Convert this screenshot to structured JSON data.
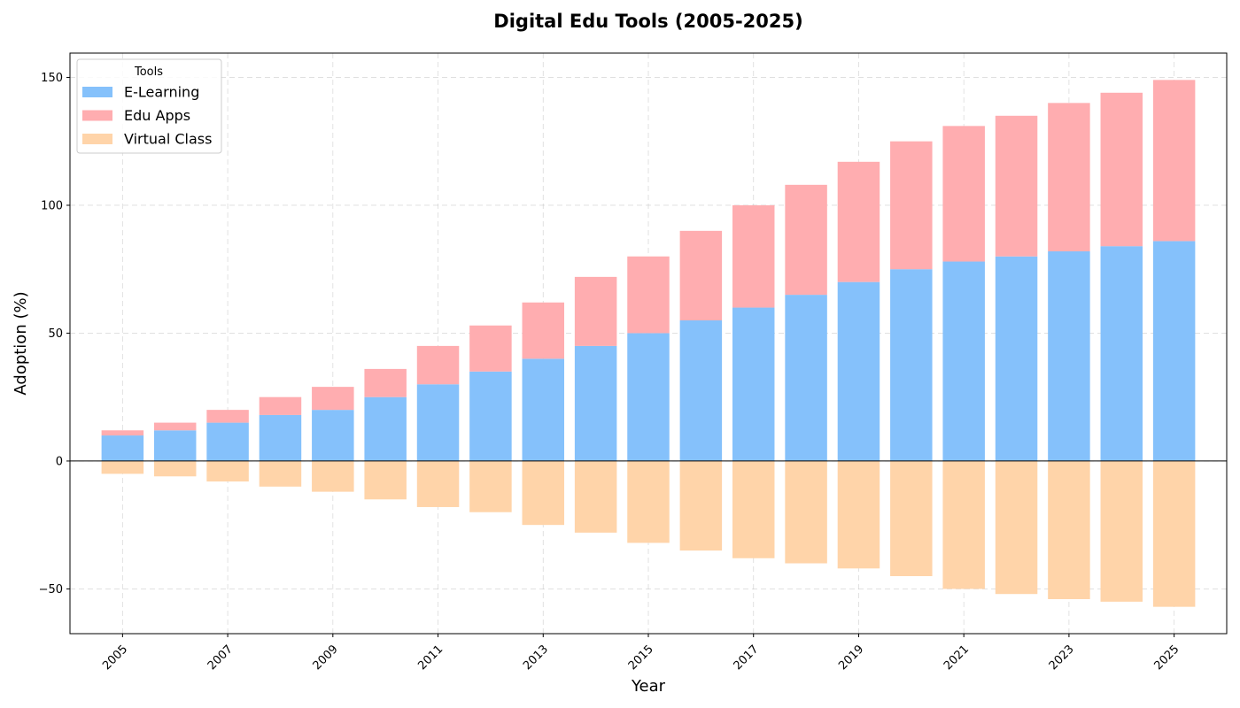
{
  "chart_data": {
    "type": "bar",
    "title": "Digital Edu Tools (2005-2025)",
    "xlabel": "Year",
    "ylabel": "Adoption (%)",
    "x": [
      2005,
      2006,
      2007,
      2008,
      2009,
      2010,
      2011,
      2012,
      2013,
      2014,
      2015,
      2016,
      2017,
      2018,
      2019,
      2020,
      2021,
      2022,
      2023,
      2024,
      2025
    ],
    "x_tick_labels": [
      "2005",
      "2007",
      "2009",
      "2011",
      "2013",
      "2015",
      "2017",
      "2019",
      "2021",
      "2023",
      "2025"
    ],
    "y_ticks": [
      -50,
      0,
      50,
      100,
      150
    ],
    "ylim": [
      -67.5,
      159.5
    ],
    "grid": true,
    "stacked": true,
    "legend": {
      "title": "Tools",
      "position": "top-left"
    },
    "series": [
      {
        "name": "E-Learning",
        "color": "#85c1fb",
        "values": [
          10,
          12,
          15,
          18,
          20,
          25,
          30,
          35,
          40,
          45,
          50,
          55,
          60,
          65,
          70,
          75,
          78,
          80,
          82,
          84,
          86
        ]
      },
      {
        "name": "Edu Apps",
        "color": "#ffadb0",
        "values": [
          2,
          3,
          5,
          7,
          9,
          11,
          15,
          18,
          22,
          27,
          30,
          35,
          40,
          43,
          47,
          50,
          53,
          55,
          58,
          60,
          63
        ]
      },
      {
        "name": "Virtual Class",
        "color": "#ffd4a9",
        "values": [
          -5,
          -6,
          -8,
          -10,
          -12,
          -15,
          -18,
          -20,
          -25,
          -28,
          -32,
          -35,
          -38,
          -40,
          -42,
          -45,
          -50,
          -52,
          -54,
          -55,
          -57
        ]
      }
    ]
  }
}
